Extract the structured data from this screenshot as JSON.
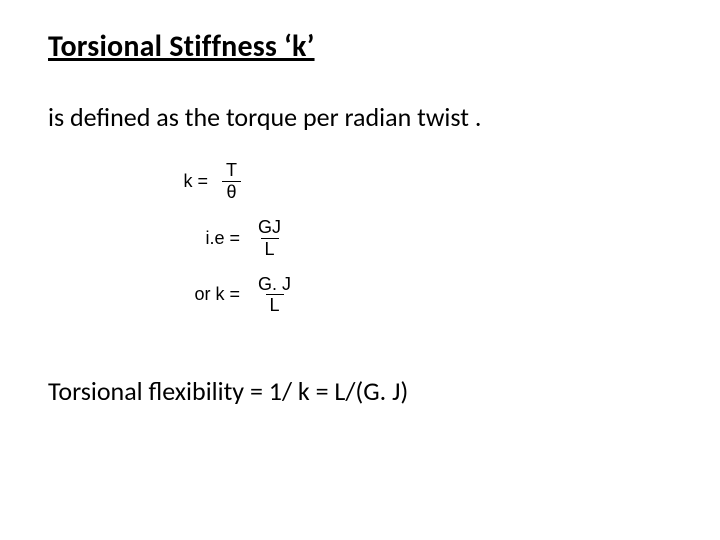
{
  "title": "Torsional Stiffness ‘k’",
  "definition": "is defined as the torque per radian twist .",
  "equations": {
    "eq1": {
      "label": "k =",
      "num": "T",
      "den": "θ"
    },
    "eq2": {
      "label": "i.e  =",
      "num": "GJ",
      "den": "L"
    },
    "eq3": {
      "label": "or  k =",
      "num": "G. J",
      "den": "L"
    }
  },
  "flexibility": "Torsional flexibility = 1/ k = L/(G. J)",
  "style": {
    "background_color": "#ffffff",
    "text_color": "#000000",
    "title_fontsize": 30,
    "body_fontsize": 26,
    "equation_fontsize": 18,
    "font_family_body": "Calibri",
    "font_family_eq": "Arial"
  }
}
